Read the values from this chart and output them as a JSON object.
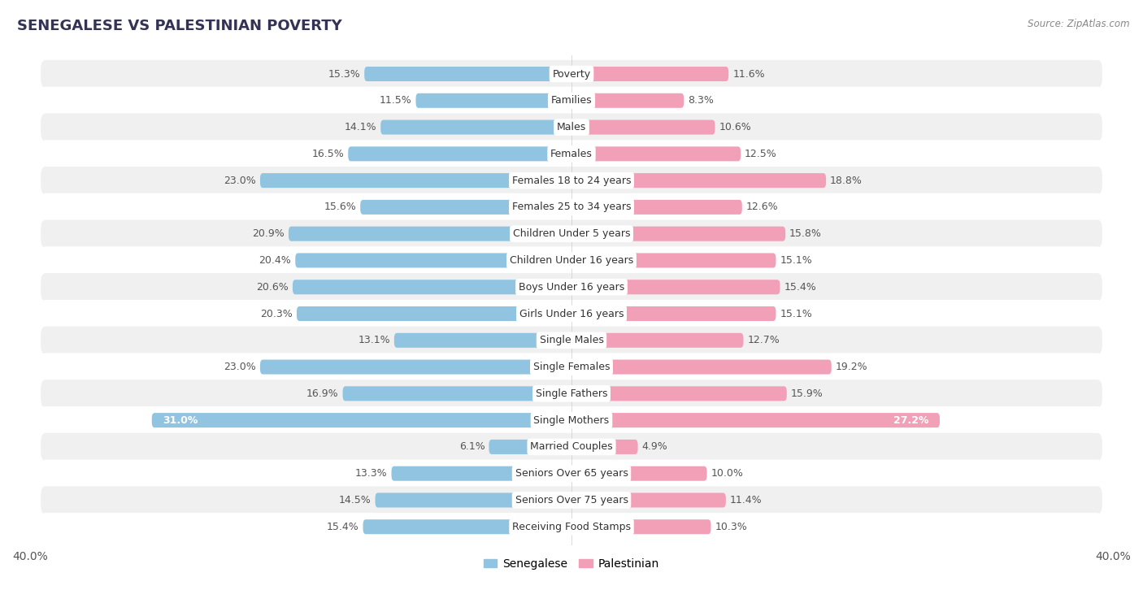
{
  "title": "SENEGALESE VS PALESTINIAN POVERTY",
  "source": "Source: ZipAtlas.com",
  "categories": [
    "Poverty",
    "Families",
    "Males",
    "Females",
    "Females 18 to 24 years",
    "Females 25 to 34 years",
    "Children Under 5 years",
    "Children Under 16 years",
    "Boys Under 16 years",
    "Girls Under 16 years",
    "Single Males",
    "Single Females",
    "Single Fathers",
    "Single Mothers",
    "Married Couples",
    "Seniors Over 65 years",
    "Seniors Over 75 years",
    "Receiving Food Stamps"
  ],
  "senegalese": [
    15.3,
    11.5,
    14.1,
    16.5,
    23.0,
    15.6,
    20.9,
    20.4,
    20.6,
    20.3,
    13.1,
    23.0,
    16.9,
    31.0,
    6.1,
    13.3,
    14.5,
    15.4
  ],
  "palestinian": [
    11.6,
    8.3,
    10.6,
    12.5,
    18.8,
    12.6,
    15.8,
    15.1,
    15.4,
    15.1,
    12.7,
    19.2,
    15.9,
    27.2,
    4.9,
    10.0,
    11.4,
    10.3
  ],
  "senegalese_color": "#91C4E0",
  "palestinian_color": "#F2A0B8",
  "background_color": "#ffffff",
  "row_bg_odd": "#f0f0f0",
  "row_bg_even": "#ffffff",
  "xlim": 40.0,
  "legend_labels": [
    "Senegalese",
    "Palestinian"
  ],
  "bar_height": 0.55,
  "label_fontsize": 9,
  "cat_fontsize": 9
}
